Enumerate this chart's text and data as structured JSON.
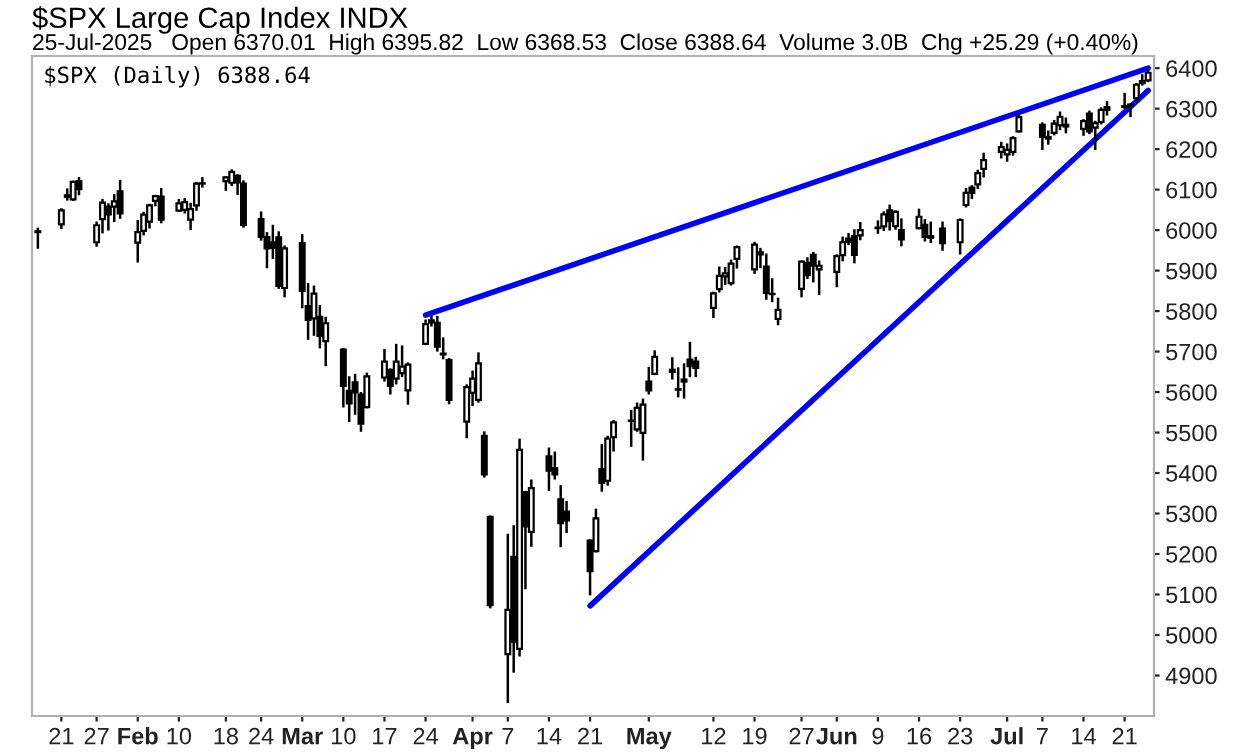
{
  "chart_data": {
    "type": "candlestick",
    "title": "$SPX Large Cap Index INDX",
    "subtitle": "25-Jul-2025   Open 6370.01  High 6395.82  Low 6368.53  Close 6388.64  Volume 3.0B  Chg +25.29 (+0.40%)",
    "annotations": [
      "$SPX (Daily) 6388.64"
    ],
    "color": "#000000",
    "x": [
      "2025-01-17",
      "2025-01-21",
      "2025-01-22",
      "2025-01-23",
      "2025-01-24",
      "2025-01-27",
      "2025-01-28",
      "2025-01-29",
      "2025-01-30",
      "2025-01-31",
      "2025-02-03",
      "2025-02-04",
      "2025-02-05",
      "2025-02-06",
      "2025-02-07",
      "2025-02-10",
      "2025-02-11",
      "2025-02-12",
      "2025-02-13",
      "2025-02-14",
      "2025-02-18",
      "2025-02-19",
      "2025-02-20",
      "2025-02-21",
      "2025-02-24",
      "2025-02-25",
      "2025-02-26",
      "2025-02-27",
      "2025-02-28",
      "2025-03-03",
      "2025-03-04",
      "2025-03-05",
      "2025-03-06",
      "2025-03-07",
      "2025-03-10",
      "2025-03-11",
      "2025-03-12",
      "2025-03-13",
      "2025-03-14",
      "2025-03-17",
      "2025-03-18",
      "2025-03-19",
      "2025-03-20",
      "2025-03-21",
      "2025-03-24",
      "2025-03-25",
      "2025-03-26",
      "2025-03-27",
      "2025-03-28",
      "2025-03-31",
      "2025-04-01",
      "2025-04-02",
      "2025-04-03",
      "2025-04-04",
      "2025-04-07",
      "2025-04-08",
      "2025-04-09",
      "2025-04-10",
      "2025-04-11",
      "2025-04-14",
      "2025-04-15",
      "2025-04-16",
      "2025-04-17",
      "2025-04-21",
      "2025-04-22",
      "2025-04-23",
      "2025-04-24",
      "2025-04-25",
      "2025-04-28",
      "2025-04-29",
      "2025-04-30",
      "2025-05-01",
      "2025-05-02",
      "2025-05-05",
      "2025-05-06",
      "2025-05-07",
      "2025-05-08",
      "2025-05-09",
      "2025-05-12",
      "2025-05-13",
      "2025-05-14",
      "2025-05-15",
      "2025-05-16",
      "2025-05-19",
      "2025-05-20",
      "2025-05-21",
      "2025-05-22",
      "2025-05-23",
      "2025-05-27",
      "2025-05-28",
      "2025-05-29",
      "2025-05-30",
      "2025-06-02",
      "2025-06-03",
      "2025-06-04",
      "2025-06-05",
      "2025-06-06",
      "2025-06-09",
      "2025-06-10",
      "2025-06-11",
      "2025-06-12",
      "2025-06-13",
      "2025-06-16",
      "2025-06-17",
      "2025-06-18",
      "2025-06-20",
      "2025-06-23",
      "2025-06-24",
      "2025-06-25",
      "2025-06-26",
      "2025-06-27",
      "2025-06-30",
      "2025-07-01",
      "2025-07-02",
      "2025-07-03",
      "2025-07-07",
      "2025-07-08",
      "2025-07-09",
      "2025-07-10",
      "2025-07-11",
      "2025-07-14",
      "2025-07-15",
      "2025-07-16",
      "2025-07-17",
      "2025-07-18",
      "2025-07-21",
      "2025-07-22",
      "2025-07-23",
      "2025-07-24",
      "2025-07-25"
    ],
    "ohlc": [
      [
        5995,
        6003,
        5957,
        5997
      ],
      [
        6014,
        6051,
        6006,
        6049
      ],
      [
        6082,
        6100,
        6076,
        6086
      ],
      [
        6076,
        6119,
        6075,
        6119
      ],
      [
        6121,
        6128,
        6089,
        6101
      ],
      [
        5970,
        6018,
        5962,
        6012
      ],
      [
        6027,
        6074,
        5995,
        6068
      ],
      [
        6058,
        6063,
        6002,
        6039
      ],
      [
        6058,
        6086,
        6023,
        6071
      ],
      [
        6096,
        6121,
        6031,
        6041
      ],
      [
        5969,
        6022,
        5923,
        5995
      ],
      [
        5998,
        6042,
        5990,
        6038
      ],
      [
        6021,
        6062,
        6007,
        6061
      ],
      [
        6072,
        6084,
        6062,
        6084
      ],
      [
        6083,
        6101,
        6020,
        6026
      ],
      [
        6048,
        6074,
        6048,
        6066
      ],
      [
        6050,
        6076,
        6044,
        6069
      ],
      [
        6026,
        6064,
        6003,
        6052
      ],
      [
        6061,
        6116,
        6051,
        6115
      ],
      [
        6115,
        6128,
        6108,
        6115
      ],
      [
        6121,
        6130,
        6100,
        6130
      ],
      [
        6117,
        6147,
        6112,
        6144
      ],
      [
        6134,
        6135,
        6090,
        6118
      ],
      [
        6115,
        6120,
        6009,
        6013
      ],
      [
        6027,
        6043,
        5977,
        5983
      ],
      [
        5983,
        5992,
        5909,
        5955
      ],
      [
        5970,
        6010,
        5932,
        5956
      ],
      [
        5982,
        5994,
        5858,
        5862
      ],
      [
        5857,
        5959,
        5837,
        5955
      ],
      [
        5968,
        5987,
        5810,
        5850
      ],
      [
        5812,
        5866,
        5732,
        5778
      ],
      [
        5782,
        5860,
        5742,
        5843
      ],
      [
        5786,
        5812,
        5711,
        5739
      ],
      [
        5726,
        5783,
        5667,
        5770
      ],
      [
        5705,
        5706,
        5565,
        5615
      ],
      [
        5603,
        5636,
        5529,
        5572
      ],
      [
        5624,
        5642,
        5547,
        5599
      ],
      [
        5594,
        5597,
        5505,
        5522
      ],
      [
        5563,
        5645,
        5563,
        5639
      ],
      [
        5636,
        5703,
        5629,
        5675
      ],
      [
        5655,
        5655,
        5597,
        5615
      ],
      [
        5633,
        5716,
        5622,
        5675
      ],
      [
        5647,
        5712,
        5640,
        5663
      ],
      [
        5604,
        5670,
        5572,
        5668
      ],
      [
        5719,
        5776,
        5719,
        5768
      ],
      [
        5772,
        5787,
        5765,
        5777
      ],
      [
        5771,
        5785,
        5703,
        5712
      ],
      [
        5695,
        5732,
        5684,
        5693
      ],
      [
        5679,
        5681,
        5573,
        5581
      ],
      [
        5527,
        5616,
        5489,
        5612
      ],
      [
        5598,
        5650,
        5569,
        5633
      ],
      [
        5581,
        5695,
        5577,
        5671
      ],
      [
        5492,
        5500,
        5392,
        5397
      ],
      [
        5292,
        5292,
        5069,
        5074
      ],
      [
        4953,
        5247,
        4835,
        5062
      ],
      [
        5193,
        5268,
        4910,
        4983
      ],
      [
        4966,
        5482,
        4950,
        5457
      ],
      [
        5353,
        5353,
        5116,
        5268
      ],
      [
        5255,
        5381,
        5221,
        5363
      ],
      [
        5441,
        5460,
        5359,
        5406
      ],
      [
        5412,
        5450,
        5387,
        5397
      ],
      [
        5335,
        5367,
        5220,
        5276
      ],
      [
        5305,
        5328,
        5255,
        5283
      ],
      [
        5233,
        5233,
        5101,
        5158
      ],
      [
        5207,
        5309,
        5207,
        5288
      ],
      [
        5410,
        5469,
        5357,
        5376
      ],
      [
        5381,
        5489,
        5372,
        5485
      ],
      [
        5489,
        5528,
        5456,
        5525
      ],
      [
        5529,
        5553,
        5468,
        5529
      ],
      [
        5508,
        5571,
        5505,
        5561
      ],
      [
        5499,
        5581,
        5434,
        5569
      ],
      [
        5626,
        5659,
        5597,
        5604
      ],
      [
        5645,
        5700,
        5645,
        5687
      ],
      [
        5655,
        5683,
        5634,
        5650
      ],
      [
        5606,
        5658,
        5590,
        5607
      ],
      [
        5626,
        5668,
        5587,
        5631
      ],
      [
        5680,
        5721,
        5640,
        5664
      ],
      [
        5675,
        5684,
        5640,
        5660
      ],
      [
        5808,
        5845,
        5786,
        5844
      ],
      [
        5854,
        5907,
        5849,
        5887
      ],
      [
        5886,
        5906,
        5868,
        5893
      ],
      [
        5869,
        5924,
        5866,
        5917
      ],
      [
        5929,
        5959,
        5908,
        5958
      ],
      [
        5903,
        5968,
        5895,
        5964
      ],
      [
        5945,
        5953,
        5909,
        5940
      ],
      [
        5910,
        5939,
        5831,
        5845
      ],
      [
        5842,
        5878,
        5825,
        5842
      ],
      [
        5781,
        5830,
        5768,
        5803
      ],
      [
        5855,
        5922,
        5837,
        5922
      ],
      [
        5919,
        5930,
        5882,
        5889
      ],
      [
        5939,
        5943,
        5874,
        5912
      ],
      [
        5903,
        5922,
        5843,
        5912
      ],
      [
        5897,
        5937,
        5862,
        5936
      ],
      [
        5938,
        5981,
        5926,
        5970
      ],
      [
        5979,
        5990,
        5966,
        5971
      ],
      [
        5985,
        5999,
        5921,
        5939
      ],
      [
        5987,
        6017,
        5978,
        6000
      ],
      [
        6005,
        6021,
        5994,
        6006
      ],
      [
        6009,
        6043,
        6001,
        6039
      ],
      [
        6049,
        6060,
        6002,
        6022
      ],
      [
        6010,
        6046,
        6004,
        6045
      ],
      [
        6000,
        6026,
        5963,
        5977
      ],
      [
        6005,
        6050,
        6005,
        6033
      ],
      [
        6013,
        6024,
        5975,
        5983
      ],
      [
        5985,
        6018,
        5971,
        5981
      ],
      [
        6004,
        6018,
        5952,
        5968
      ],
      [
        5970,
        6026,
        5943,
        6025
      ],
      [
        6062,
        6101,
        6059,
        6092
      ],
      [
        6105,
        6108,
        6080,
        6092
      ],
      [
        6113,
        6146,
        6105,
        6141
      ],
      [
        6151,
        6188,
        6133,
        6173
      ],
      [
        6193,
        6215,
        6180,
        6205
      ],
      [
        6187,
        6211,
        6172,
        6198
      ],
      [
        6193,
        6229,
        6187,
        6227
      ],
      [
        6244,
        6285,
        6244,
        6279
      ],
      [
        6260,
        6263,
        6201,
        6230
      ],
      [
        6230,
        6243,
        6214,
        6226
      ],
      [
        6240,
        6269,
        6237,
        6263
      ],
      [
        6259,
        6290,
        6250,
        6280
      ],
      [
        6256,
        6275,
        6242,
        6260
      ],
      [
        6250,
        6271,
        6236,
        6269
      ],
      [
        6288,
        6292,
        6240,
        6244
      ],
      [
        6253,
        6267,
        6201,
        6264
      ],
      [
        6267,
        6300,
        6264,
        6297
      ],
      [
        6304,
        6316,
        6286,
        6297
      ],
      [
        6304,
        6336,
        6303,
        6306
      ],
      [
        6307,
        6310,
        6282,
        6310
      ],
      [
        6326,
        6360,
        6317,
        6359
      ],
      [
        6368,
        6382,
        6360,
        6363
      ],
      [
        6370.01,
        6395.82,
        6368.53,
        6388.64
      ]
    ],
    "series": [
      {
        "type": "line",
        "color": "#0000ff",
        "x": [
          "2025-03-24",
          "2025-07-25"
        ],
        "values": [
          5790,
          6400
        ]
      },
      {
        "type": "line",
        "color": "#0000ff",
        "x": [
          "2025-04-21",
          "2025-07-25"
        ],
        "values": [
          5072,
          6345
        ]
      }
    ],
    "xlim": [
      "2025-01-16",
      "2025-07-26"
    ],
    "ylim": [
      4800,
      6430
    ],
    "yticks": [
      4900,
      5000,
      5100,
      5200,
      5300,
      5400,
      5500,
      5600,
      5700,
      5800,
      5900,
      6000,
      6100,
      6200,
      6300,
      6400
    ],
    "xticks": [
      {
        "value": "2025-01-21",
        "label": "21"
      },
      {
        "value": "2025-01-27",
        "label": "27"
      },
      {
        "value": "2025-02-03",
        "label": "Feb"
      },
      {
        "value": "2025-02-10",
        "label": "10"
      },
      {
        "value": "2025-02-18",
        "label": "18"
      },
      {
        "value": "2025-02-24",
        "label": "24"
      },
      {
        "value": "2025-03-03",
        "label": "Mar"
      },
      {
        "value": "2025-03-10",
        "label": "10"
      },
      {
        "value": "2025-03-17",
        "label": "17"
      },
      {
        "value": "2025-03-24",
        "label": "24"
      },
      {
        "value": "2025-04-01",
        "label": "Apr"
      },
      {
        "value": "2025-04-07",
        "label": "7"
      },
      {
        "value": "2025-04-14",
        "label": "14"
      },
      {
        "value": "2025-04-21",
        "label": "21"
      },
      {
        "value": "2025-05-01",
        "label": "May"
      },
      {
        "value": "2025-05-12",
        "label": "12"
      },
      {
        "value": "2025-05-19",
        "label": "19"
      },
      {
        "value": "2025-05-27",
        "label": "27"
      },
      {
        "value": "2025-06-02",
        "label": "Jun"
      },
      {
        "value": "2025-06-09",
        "label": "9"
      },
      {
        "value": "2025-06-16",
        "label": "16"
      },
      {
        "value": "2025-06-23",
        "label": "23"
      },
      {
        "value": "2025-07-01",
        "label": "Jul"
      },
      {
        "value": "2025-07-07",
        "label": "7"
      },
      {
        "value": "2025-07-14",
        "label": "14"
      },
      {
        "value": "2025-07-21",
        "label": "21"
      }
    ],
    "grid": false
  }
}
